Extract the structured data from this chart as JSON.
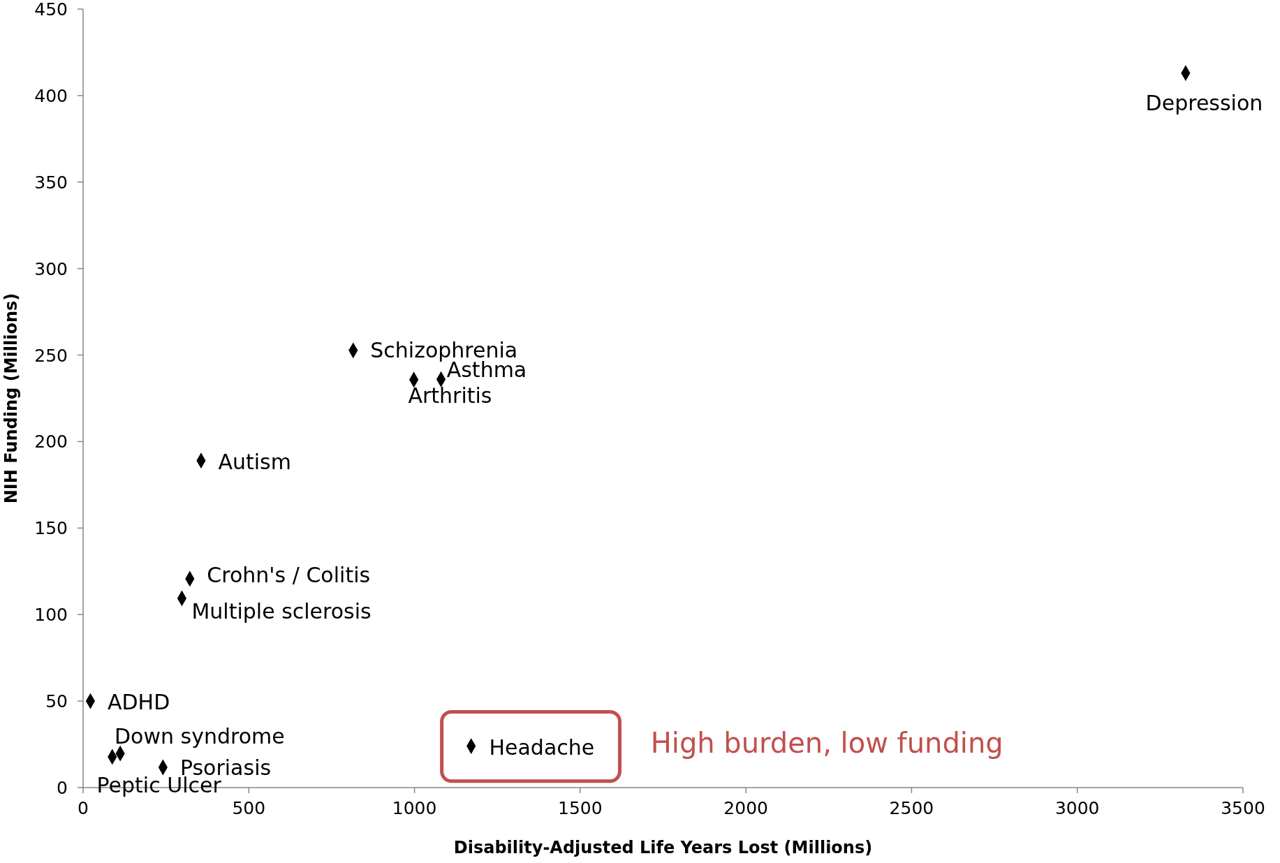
{
  "chart_data": {
    "type": "scatter",
    "xlabel": "Disability-Adjusted Life Years Lost (Millions)",
    "ylabel": "NIH Funding (Millions)",
    "x": [
      3327,
      815,
      998,
      1080,
      356,
      322,
      298,
      22,
      112,
      88,
      241,
      1171
    ],
    "values": [
      413,
      252.7,
      235.8,
      236,
      189,
      120.7,
      109.4,
      50,
      19.7,
      17.8,
      11.7,
      24
    ],
    "color": "#000000",
    "marker": "diamond",
    "grid": false,
    "xlim": [
      0,
      3500
    ],
    "xticks": [
      0,
      500,
      1000,
      1500,
      2000,
      2500,
      3000,
      3500
    ],
    "ylim": [
      0,
      450
    ],
    "yticks": [
      0,
      50,
      100,
      150,
      200,
      250,
      300,
      350,
      400,
      450
    ],
    "annotations": [
      {
        "text": "Depression",
        "x": 3327,
        "y": 413
      },
      {
        "text": "Schizophrenia",
        "x": 815,
        "y": 252.7
      },
      {
        "text": "Arthritis",
        "x": 998,
        "y": 235.8
      },
      {
        "text": "Asthma",
        "x": 1080,
        "y": 236
      },
      {
        "text": "Autism",
        "x": 356,
        "y": 189
      },
      {
        "text": "Crohn's / Colitis",
        "x": 322,
        "y": 120.7
      },
      {
        "text": "Multiple sclerosis",
        "x": 298,
        "y": 109.4
      },
      {
        "text": "ADHD",
        "x": 22,
        "y": 50
      },
      {
        "text": "Down syndrome",
        "x": 112,
        "y": 19.7
      },
      {
        "text": "Peptic Ulcer",
        "x": 88,
        "y": 17.8
      },
      {
        "text": "Psoriasis",
        "x": 241,
        "y": 11.7
      },
      {
        "text": "Headache",
        "x": 1171,
        "y": 24
      },
      "High burden, low funding"
    ]
  }
}
